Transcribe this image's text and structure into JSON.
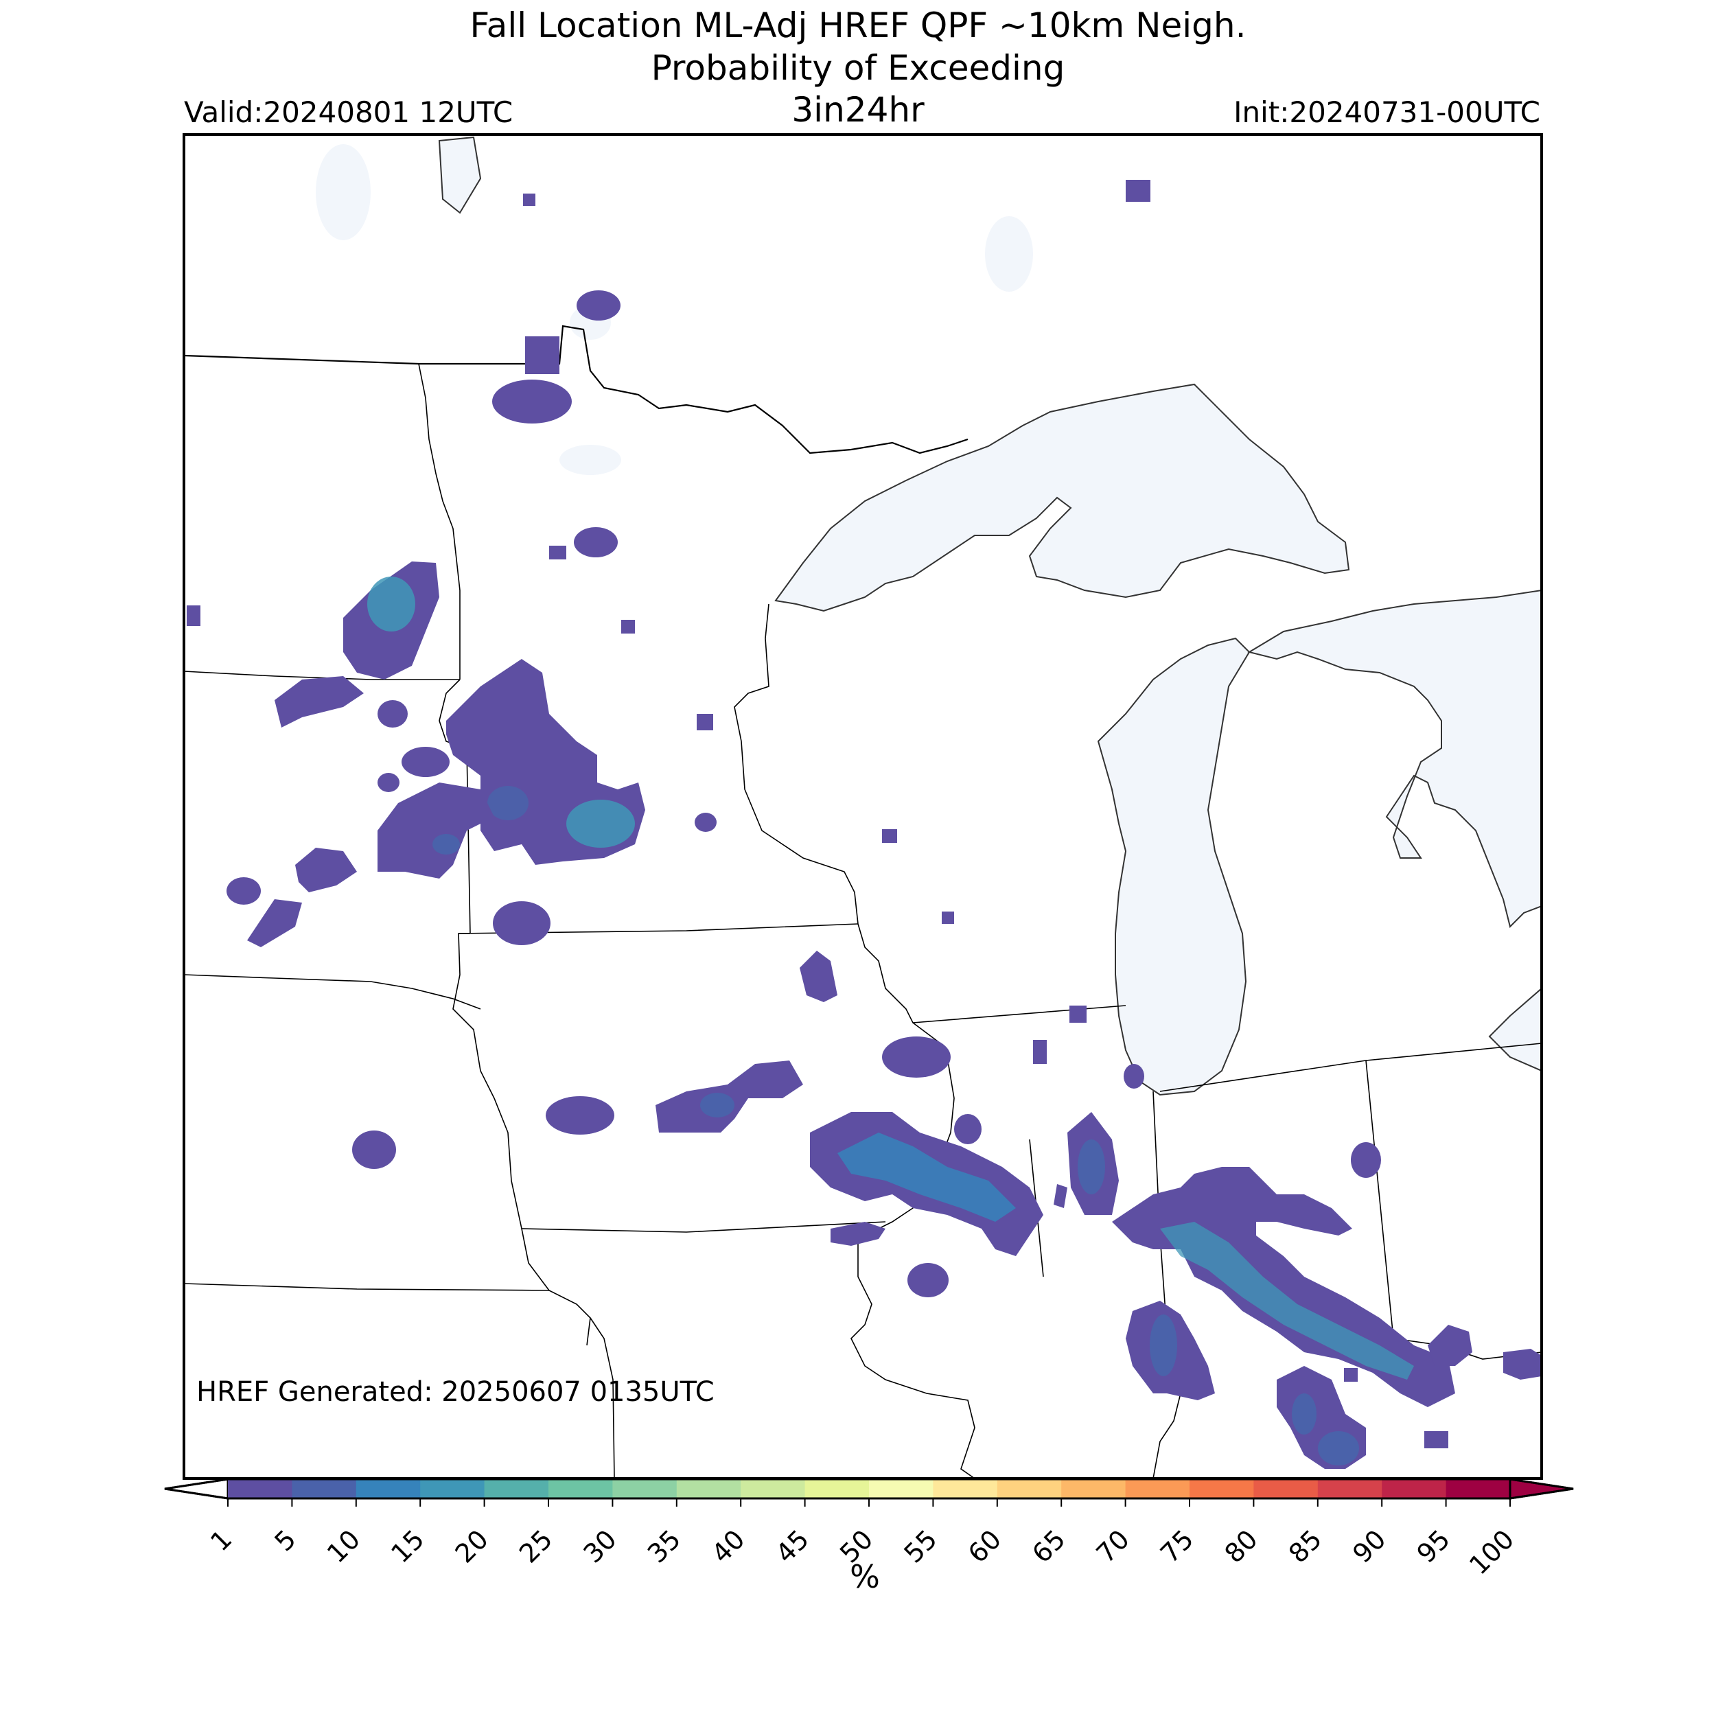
{
  "header": {
    "title_line1": "Fall Location ML-Adj HREF QPF ~10km Neigh.",
    "title_line2": "Probability of Exceeding",
    "threshold": "3in24hr",
    "valid": "Valid:20240801 12UTC",
    "init": "Init:20240731-00UTC"
  },
  "footer": {
    "generated": "HREF Generated: 20250607 0135UTC"
  },
  "colorbar": {
    "label": "%",
    "ticks": [
      "1",
      "5",
      "10",
      "15",
      "20",
      "25",
      "30",
      "35",
      "40",
      "45",
      "50",
      "55",
      "60",
      "65",
      "70",
      "75",
      "80",
      "85",
      "90",
      "95",
      "100"
    ],
    "colors": [
      "#5e4fa2",
      "#4a62aa",
      "#3683bb",
      "#3f97b7",
      "#55b0ab",
      "#6dc4a4",
      "#8dd1a4",
      "#b2e0a2",
      "#cdea9e",
      "#e6f598",
      "#f6fbb2",
      "#fee89a",
      "#fed27f",
      "#fdb868",
      "#fb9a56",
      "#f67848",
      "#e95c47",
      "#d6424b",
      "#be2449",
      "#9e0142"
    ],
    "under_color": "#ffffff",
    "over_color": "#9e0142"
  },
  "map": {
    "land_color": "#ffffff",
    "water_color": "#f2f6fb",
    "border_color": "#000000",
    "prob_low_color": "#5e4fa2",
    "prob_mid_color": "#4a62aa",
    "prob_high_color": "#3683bb"
  }
}
